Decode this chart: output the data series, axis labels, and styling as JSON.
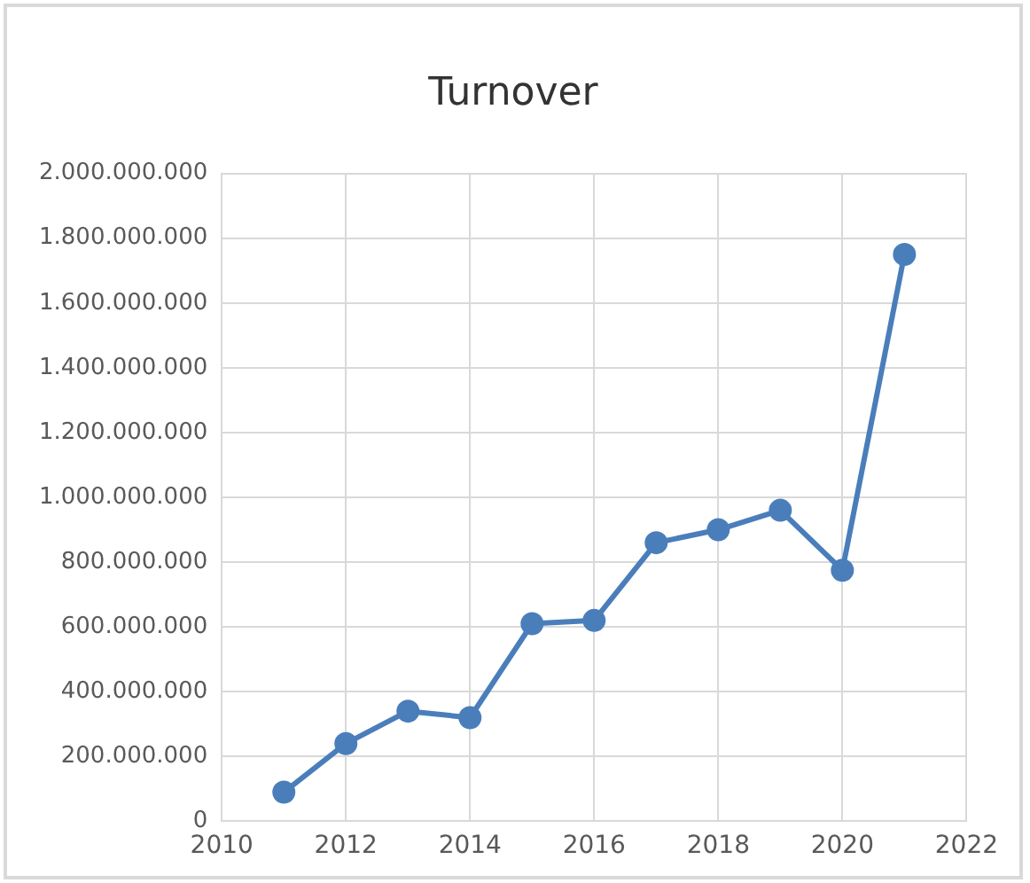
{
  "chart_data": {
    "type": "line",
    "title": "Turnover",
    "x": [
      2011,
      2012,
      2013,
      2014,
      2015,
      2016,
      2017,
      2018,
      2019,
      2020,
      2021
    ],
    "series": [
      {
        "color": "#4a7ebb",
        "values": [
          90000000,
          240000000,
          340000000,
          320000000,
          610000000,
          620000000,
          860000000,
          900000000,
          960000000,
          775000000,
          1750000000
        ]
      }
    ],
    "xlim": [
      2010,
      2022
    ],
    "xticks": [
      2010,
      2012,
      2014,
      2016,
      2018,
      2020,
      2022
    ],
    "ylim": [
      0,
      2000000000
    ],
    "yticks": [
      0,
      {
        "value": 200000000,
        "label": "200.000.000"
      },
      {
        "value": 400000000,
        "label": "400.000.000"
      },
      {
        "value": 600000000,
        "label": "600.000.000"
      },
      {
        "value": 800000000,
        "label": "800.000.000"
      },
      {
        "value": 1000000000,
        "label": "1.000.000.000"
      },
      {
        "value": 1200000000,
        "label": "1.200.000.000"
      },
      {
        "value": 1400000000,
        "label": "1.400.000.000"
      },
      {
        "value": 1600000000,
        "label": "1.600.000.000"
      },
      {
        "value": 1800000000,
        "label": "1.800.000.000"
      },
      {
        "value": 2000000000,
        "label": "2.000.000.000"
      }
    ],
    "grid": true,
    "legend": false,
    "marker": "circle",
    "line_style": "solid"
  }
}
